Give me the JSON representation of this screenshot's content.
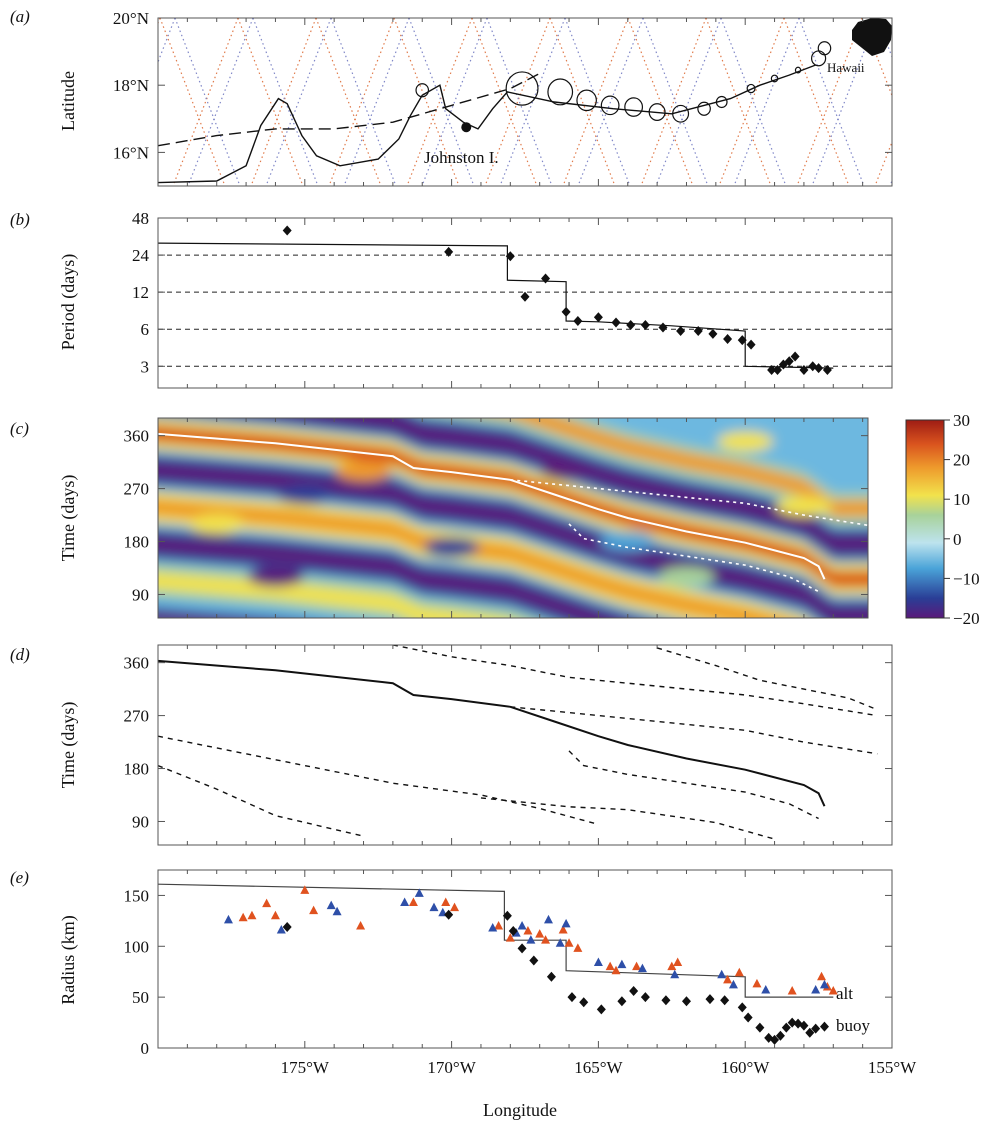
{
  "chart_data": [
    {
      "panel_label": "(a)",
      "type": "line",
      "ylabel": "Latitude",
      "xlim": [
        -180,
        -155
      ],
      "ylim": [
        15,
        20
      ],
      "yticks": [
        {
          "v": 16,
          "label": "16°N"
        },
        {
          "v": 18,
          "label": "18°N"
        },
        {
          "v": 20,
          "label": "20°N"
        }
      ],
      "annotations": [
        "Johnston I.",
        "Hawaii"
      ],
      "island_point": {
        "lon": -169.5,
        "lat": 16.75
      },
      "dashed_track": [
        [
          -180,
          16.2
        ],
        [
          -178,
          16.5
        ],
        [
          -176,
          16.7
        ],
        [
          -174,
          16.7
        ],
        [
          -172,
          16.9
        ],
        [
          -170,
          17.4
        ],
        [
          -168,
          17.9
        ],
        [
          -167,
          18.35
        ]
      ],
      "solid_track": [
        [
          -180,
          15.1
        ],
        [
          -178,
          15.15
        ],
        [
          -177,
          15.6
        ],
        [
          -176.5,
          16.8
        ],
        [
          -175.9,
          17.6
        ],
        [
          -175.6,
          17.45
        ],
        [
          -175.1,
          16.5
        ],
        [
          -174.6,
          15.9
        ],
        [
          -173.8,
          15.6
        ],
        [
          -172.5,
          15.8
        ],
        [
          -171.8,
          16.4
        ],
        [
          -171.4,
          17.1
        ],
        [
          -171.0,
          17.7
        ],
        [
          -170.4,
          18.0
        ],
        [
          -170.2,
          17.3
        ],
        [
          -169.6,
          16.9
        ],
        [
          -169.1,
          16.7
        ],
        [
          -168.6,
          17.3
        ],
        [
          -168.1,
          17.8
        ],
        [
          -166.5,
          17.5
        ],
        [
          -164.5,
          17.3
        ],
        [
          -162.5,
          17.15
        ],
        [
          -160.5,
          17.6
        ],
        [
          -159.5,
          18.0
        ],
        [
          -158.5,
          18.3
        ],
        [
          -157.6,
          18.6
        ]
      ],
      "track_loops": [
        {
          "lon": -167.6,
          "lat": 17.9,
          "r": 0.9
        },
        {
          "lon": -166.3,
          "lat": 17.8,
          "r": 0.7
        },
        {
          "lon": -165.4,
          "lat": 17.55,
          "r": 0.55
        },
        {
          "lon": -164.6,
          "lat": 17.4,
          "r": 0.5
        },
        {
          "lon": -163.8,
          "lat": 17.35,
          "r": 0.5
        },
        {
          "lon": -163.0,
          "lat": 17.2,
          "r": 0.45
        },
        {
          "lon": -162.2,
          "lat": 17.15,
          "r": 0.45
        },
        {
          "lon": -161.4,
          "lat": 17.3,
          "r": 0.35
        },
        {
          "lon": -160.8,
          "lat": 17.5,
          "r": 0.3
        },
        {
          "lon": -159.8,
          "lat": 17.9,
          "r": 0.22
        },
        {
          "lon": -159.0,
          "lat": 18.2,
          "r": 0.18
        },
        {
          "lon": -158.2,
          "lat": 18.45,
          "r": 0.15
        },
        {
          "lon": -157.5,
          "lat": 18.8,
          "r": 0.4
        },
        {
          "lon": -157.3,
          "lat": 19.1,
          "r": 0.35
        },
        {
          "lon": -171.0,
          "lat": 17.85,
          "r": 0.35
        }
      ]
    },
    {
      "panel_label": "(b)",
      "type": "scatter",
      "ylabel": "Period (days)",
      "scale": "log",
      "xlim": [
        -180,
        -155
      ],
      "ylim": [
        2,
        48
      ],
      "yticks": [
        3,
        6,
        12,
        24,
        48
      ],
      "points": [
        [
          -175.6,
          38
        ],
        [
          -170.1,
          25.5
        ],
        [
          -168.0,
          23.5
        ],
        [
          -167.5,
          11
        ],
        [
          -166.8,
          15.5
        ],
        [
          -166.1,
          8.3
        ],
        [
          -165.7,
          7.0
        ],
        [
          -165.0,
          7.5
        ],
        [
          -164.4,
          6.8
        ],
        [
          -163.9,
          6.5
        ],
        [
          -163.4,
          6.5
        ],
        [
          -162.8,
          6.2
        ],
        [
          -162.2,
          5.8
        ],
        [
          -161.6,
          5.8
        ],
        [
          -161.1,
          5.5
        ],
        [
          -160.6,
          5.0
        ],
        [
          -160.1,
          4.9
        ],
        [
          -159.8,
          4.5
        ],
        [
          -159.1,
          2.8
        ],
        [
          -158.9,
          2.8
        ],
        [
          -158.7,
          3.1
        ],
        [
          -158.5,
          3.3
        ],
        [
          -158.3,
          3.6
        ],
        [
          -158.0,
          2.8
        ],
        [
          -157.7,
          3.0
        ],
        [
          -157.5,
          2.9
        ],
        [
          -157.2,
          2.8
        ]
      ],
      "step_line": [
        [
          -180,
          30
        ],
        [
          -168.1,
          28.5
        ],
        [
          -168.1,
          15
        ],
        [
          -166.1,
          14.6
        ],
        [
          -166.1,
          7
        ],
        [
          -165.0,
          6.9
        ],
        [
          -162.5,
          6.4
        ],
        [
          -160.0,
          5.8
        ],
        [
          -160.0,
          3.0
        ],
        [
          -157.0,
          2.9
        ]
      ]
    },
    {
      "panel_label": "(c)",
      "type": "heatmap",
      "ylabel": "Time (days)",
      "xlim": [
        -180,
        -155
      ],
      "ylim": [
        50,
        390
      ],
      "yticks": [
        90,
        180,
        270,
        360
      ],
      "colorbar": {
        "min": -20,
        "max": 30,
        "ticks": [
          30,
          20,
          10,
          0,
          -10,
          -20
        ],
        "colors": [
          "#5a1a7a",
          "#2a4fa3",
          "#4aa3d8",
          "#b8e0ea",
          "#a8d29a",
          "#f2e24c",
          "#ee9a2c",
          "#d9531e",
          "#9e1c14"
        ]
      },
      "warm_bands": [
        {
          "offset": 0,
          "value": 24
        },
        {
          "offset": 125,
          "value": 20
        },
        {
          "offset": 250,
          "value": 16
        },
        {
          "offset": -120,
          "value": 18
        }
      ],
      "cold_bands": [
        {
          "offset": 62,
          "value": -18
        },
        {
          "offset": 188,
          "value": -17
        },
        {
          "offset": -60,
          "value": -19
        },
        {
          "offset": 312,
          "value": -15
        }
      ]
    },
    {
      "panel_label": "(d)",
      "type": "line",
      "ylabel": "Time (days)",
      "xlim": [
        -180,
        -155
      ],
      "ylim": [
        50,
        390
      ],
      "yticks": [
        90,
        180,
        270,
        360
      ],
      "main_trajectory": [
        [
          -180,
          363
        ],
        [
          -176,
          347
        ],
        [
          -172,
          325
        ],
        [
          -171.3,
          305
        ],
        [
          -170,
          298
        ],
        [
          -168,
          285
        ],
        [
          -166.5,
          260
        ],
        [
          -165,
          235
        ],
        [
          -164,
          220
        ],
        [
          -162,
          197
        ],
        [
          -160,
          178
        ],
        [
          -158,
          152
        ],
        [
          -157.5,
          138
        ],
        [
          -157.3,
          116
        ]
      ],
      "dashed_trajectories": [
        [
          [
            -180,
            235
          ],
          [
            -176,
            195
          ],
          [
            -172,
            155
          ],
          [
            -169,
            135
          ],
          [
            -167,
            112
          ],
          [
            -165,
            85
          ]
        ],
        [
          [
            -180,
            185
          ],
          [
            -178,
            145
          ],
          [
            -176,
            100
          ],
          [
            -173,
            65
          ]
        ],
        [
          [
            -172,
            390
          ],
          [
            -170,
            370
          ],
          [
            -168,
            355
          ],
          [
            -166,
            335
          ],
          [
            -164,
            325
          ],
          [
            -162,
            315
          ],
          [
            -160,
            305
          ],
          [
            -158,
            290
          ],
          [
            -155.5,
            270
          ]
        ],
        [
          [
            -168,
            285
          ],
          [
            -166,
            275
          ],
          [
            -164,
            265
          ],
          [
            -162,
            255
          ],
          [
            -160,
            245
          ],
          [
            -158,
            225
          ],
          [
            -155.5,
            205
          ]
        ],
        [
          [
            -166,
            210
          ],
          [
            -165.5,
            185
          ],
          [
            -164,
            170
          ],
          [
            -162,
            155
          ],
          [
            -160,
            140
          ],
          [
            -158.5,
            120
          ],
          [
            -157.5,
            95
          ]
        ],
        [
          [
            -169,
            130
          ],
          [
            -166,
            115
          ],
          [
            -164,
            110
          ],
          [
            -161,
            88
          ],
          [
            -159,
            60
          ]
        ],
        [
          [
            -163,
            385
          ],
          [
            -161,
            355
          ],
          [
            -159.5,
            330
          ],
          [
            -158,
            315
          ],
          [
            -156.5,
            300
          ],
          [
            -155.5,
            280
          ]
        ]
      ]
    },
    {
      "panel_label": "(e)",
      "type": "scatter",
      "ylabel": "Radius (km)",
      "xlabel": "Longitude",
      "xlim": [
        -180,
        -155
      ],
      "ylim": [
        0,
        175
      ],
      "yticks": [
        0,
        50,
        100,
        150
      ],
      "xticks": [
        {
          "v": -175,
          "label": "175°W"
        },
        {
          "v": -170,
          "label": "170°W"
        },
        {
          "v": -165,
          "label": "165°W"
        },
        {
          "v": -160,
          "label": "160°W"
        },
        {
          "v": -155,
          "label": "155°W"
        }
      ],
      "series_labels": [
        "alt",
        "buoy"
      ],
      "alt_line": [
        [
          -180,
          161
        ],
        [
          -168.2,
          154
        ],
        [
          -168.2,
          106
        ],
        [
          -166.1,
          106
        ],
        [
          -166.1,
          76
        ],
        [
          -160.0,
          70
        ],
        [
          -160.0,
          50
        ],
        [
          -157.0,
          50
        ]
      ],
      "orange_triangles": [
        [
          -177.1,
          128
        ],
        [
          -176.8,
          130
        ],
        [
          -176.3,
          142
        ],
        [
          -176.0,
          130
        ],
        [
          -175.0,
          155
        ],
        [
          -174.7,
          135
        ],
        [
          -173.1,
          120
        ],
        [
          -171.3,
          143
        ],
        [
          -170.2,
          143
        ],
        [
          -169.9,
          138
        ],
        [
          -168.4,
          120
        ],
        [
          -168.0,
          108
        ],
        [
          -167.4,
          115
        ],
        [
          -167.0,
          112
        ],
        [
          -166.8,
          106
        ],
        [
          -166.2,
          116
        ],
        [
          -166.0,
          103
        ],
        [
          -165.7,
          98
        ],
        [
          -164.6,
          80
        ],
        [
          -164.4,
          76
        ],
        [
          -163.7,
          80
        ],
        [
          -162.5,
          80
        ],
        [
          -162.3,
          84
        ],
        [
          -160.6,
          67
        ],
        [
          -160.2,
          74
        ],
        [
          -159.6,
          63
        ],
        [
          -158.4,
          56
        ],
        [
          -157.4,
          70
        ],
        [
          -157.2,
          60
        ],
        [
          -157.0,
          56
        ]
      ],
      "blue_triangles": [
        [
          -177.6,
          126
        ],
        [
          -175.8,
          116
        ],
        [
          -174.1,
          140
        ],
        [
          -173.9,
          134
        ],
        [
          -171.6,
          143
        ],
        [
          -171.1,
          152
        ],
        [
          -170.6,
          138
        ],
        [
          -170.3,
          133
        ],
        [
          -168.6,
          118
        ],
        [
          -167.8,
          113
        ],
        [
          -167.6,
          120
        ],
        [
          -167.3,
          106
        ],
        [
          -166.7,
          126
        ],
        [
          -166.3,
          103
        ],
        [
          -166.1,
          122
        ],
        [
          -165.0,
          84
        ],
        [
          -164.2,
          82
        ],
        [
          -163.5,
          78
        ],
        [
          -162.4,
          72
        ],
        [
          -160.8,
          72
        ],
        [
          -160.4,
          62
        ],
        [
          -159.3,
          57
        ],
        [
          -157.6,
          57
        ],
        [
          -157.3,
          62
        ]
      ],
      "buoy_points": [
        [
          -175.6,
          119
        ],
        [
          -170.1,
          131
        ],
        [
          -168.1,
          130
        ],
        [
          -167.9,
          115
        ],
        [
          -167.6,
          98
        ],
        [
          -167.2,
          86
        ],
        [
          -166.6,
          70
        ],
        [
          -165.9,
          50
        ],
        [
          -165.5,
          45
        ],
        [
          -164.9,
          38
        ],
        [
          -164.2,
          46
        ],
        [
          -163.8,
          56
        ],
        [
          -163.4,
          50
        ],
        [
          -162.7,
          47
        ],
        [
          -162.0,
          46
        ],
        [
          -161.2,
          48
        ],
        [
          -160.7,
          47
        ],
        [
          -160.1,
          40
        ],
        [
          -159.9,
          30
        ],
        [
          -159.5,
          20
        ],
        [
          -159.2,
          10
        ],
        [
          -159.0,
          8
        ],
        [
          -158.8,
          12
        ],
        [
          -158.6,
          20
        ],
        [
          -158.4,
          25
        ],
        [
          -158.2,
          24
        ],
        [
          -158.0,
          22
        ],
        [
          -157.8,
          15
        ],
        [
          -157.6,
          19
        ],
        [
          -157.3,
          21
        ]
      ]
    }
  ]
}
